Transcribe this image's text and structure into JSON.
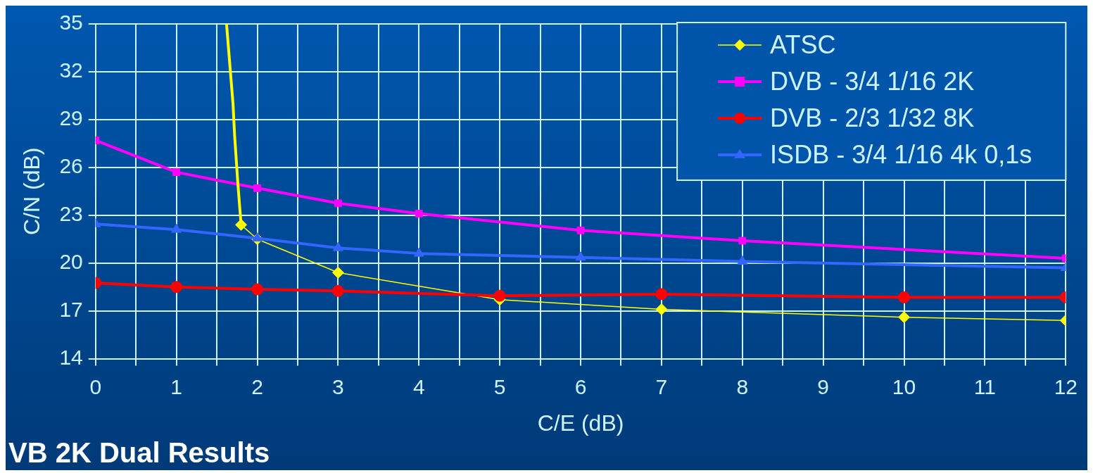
{
  "chart_data": {
    "type": "line",
    "xlabel": "C/E (dB)",
    "ylabel": "C/N (dB)",
    "xlim": [
      0,
      12
    ],
    "xticks": [
      0,
      {
        "value": 0.5,
        "label": null
      },
      1,
      {
        "value": 1.5,
        "label": null
      },
      2,
      {
        "value": 2.5,
        "label": null
      },
      3,
      {
        "value": 3.5,
        "label": null
      },
      4,
      {
        "value": 4.5,
        "label": null
      },
      5,
      {
        "value": 5.5,
        "label": null
      },
      6,
      {
        "value": 6.5,
        "label": null
      },
      7,
      {
        "value": 7.5,
        "label": null
      },
      8,
      {
        "value": 8.5,
        "label": null
      },
      9,
      {
        "value": 9.5,
        "label": null
      },
      10,
      {
        "value": 10.5,
        "label": null
      },
      11,
      {
        "value": 11.5,
        "label": null
      },
      12
    ],
    "ylim": [
      14,
      35
    ],
    "yticks": [
      14,
      17,
      20,
      23,
      26,
      29,
      32,
      35
    ],
    "grid": true,
    "legend": "top right",
    "annotations": [
      "VB 2K Dual Results"
    ],
    "series": [
      {
        "name": "ATSC",
        "color": "#ffff00",
        "marker": "diamond",
        "x": [
          1.8,
          2,
          3,
          5,
          7,
          10,
          12
        ],
        "values": [
          22.4,
          21.5,
          19.4,
          17.7,
          17.1,
          16.6,
          16.4
        ]
      },
      {
        "name": "DVB - 3/4 1/16 2K",
        "color": "#ff00ff",
        "marker": "square",
        "x": [
          0,
          1,
          2,
          3,
          4,
          6,
          8,
          12
        ],
        "values": [
          27.7,
          25.7,
          24.7,
          23.75,
          23.1,
          22.05,
          21.4,
          20.3
        ]
      },
      {
        "name": "DVB - 2/3 1/32 8K",
        "color": "#ff0000",
        "marker": "circle",
        "x": [
          0,
          1,
          2,
          3,
          5,
          7,
          10,
          12
        ],
        "values": [
          18.75,
          18.5,
          18.35,
          18.25,
          17.95,
          18.05,
          17.85,
          17.85
        ]
      },
      {
        "name": "ISDB - 3/4 1/16 4k 0,1s",
        "color": "#3366ff",
        "marker": "triangle",
        "x": [
          0,
          1,
          2,
          3,
          4,
          6,
          8,
          12
        ],
        "values": [
          22.45,
          22.1,
          21.55,
          20.95,
          20.6,
          20.35,
          20.1,
          19.7
        ]
      },
      {
        "color": "#ffff00",
        "marker": "none",
        "x": [
          1.62,
          1.7,
          1.72,
          1.76,
          1.8
        ],
        "values": [
          35,
          30,
          28,
          25,
          22.4
        ]
      }
    ]
  }
}
